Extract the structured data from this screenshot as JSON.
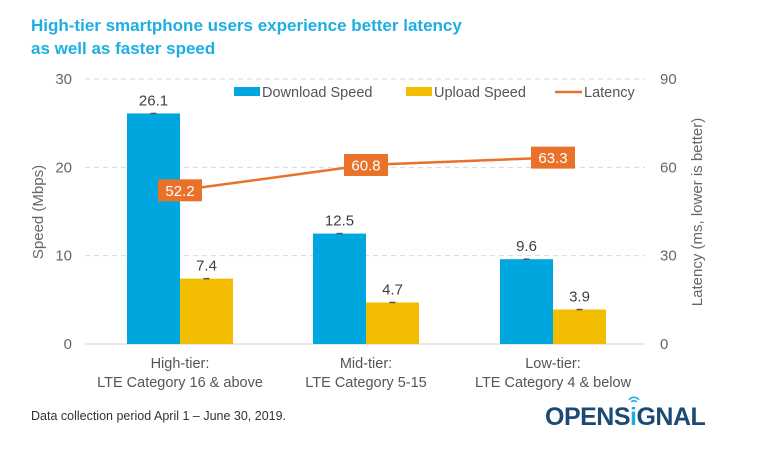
{
  "title": "High-tier smartphone users experience better latency as well as faster speed",
  "title_lines": [
    "High-tier smartphone users experience better latency",
    "as well as faster speed"
  ],
  "footnote": "Data collection period April 1 – June 30, 2019.",
  "logo": {
    "prefix": "OPENS",
    "i": "i",
    "suffix": "GNAL",
    "icon": "wifi-signal-icon"
  },
  "colors": {
    "title": "#1eaee3",
    "download": "#00a6de",
    "upload": "#f2bc00",
    "latency": "#e8722a",
    "grid": "#d9d9d9",
    "text": "#666666"
  },
  "chart_data": {
    "type": "bar",
    "title": "High-tier smartphone users experience better latency as well as faster speed",
    "categories": [
      [
        "High-tier:",
        "LTE Category 16 & above"
      ],
      [
        "Mid-tier:",
        "LTE Category 5-15"
      ],
      [
        "Low-tier:",
        "LTE Category 4 & below"
      ]
    ],
    "series": [
      {
        "name": "Download Speed",
        "type": "bar",
        "axis": "left",
        "color": "#00a6de",
        "values": [
          26.1,
          12.5,
          9.6
        ]
      },
      {
        "name": "Upload Speed",
        "type": "bar",
        "axis": "left",
        "color": "#f2bc00",
        "values": [
          7.4,
          4.7,
          3.9
        ]
      },
      {
        "name": "Latency",
        "type": "line",
        "axis": "right",
        "color": "#e8722a",
        "values": [
          52.2,
          60.8,
          63.3
        ]
      }
    ],
    "ylabel": "Speed (Mbps)",
    "y2label": "Latency (ms, lower is better)",
    "ylim": [
      0,
      30
    ],
    "y2lim": [
      0,
      90
    ],
    "yticks": [
      0,
      10,
      20,
      30
    ],
    "y2ticks": [
      0,
      30,
      60,
      90
    ],
    "grid": true,
    "legend": "top-center"
  }
}
